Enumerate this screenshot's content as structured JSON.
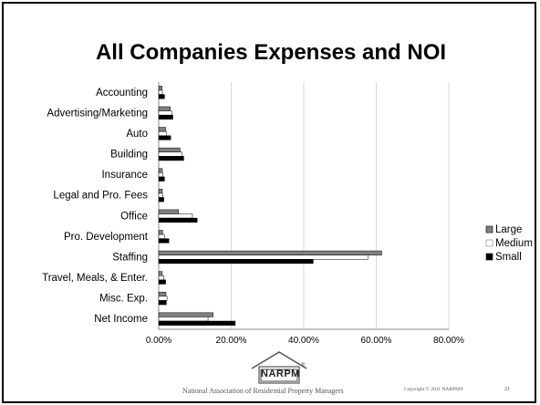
{
  "slide": {
    "footer_org": "National Association of Residential Property Managers",
    "copyright": "Copyright © 2011 NARPM®",
    "page_number": "21",
    "logo_text": "NARPM",
    "logo_mark": "®"
  },
  "chart_data": {
    "type": "bar",
    "orientation": "horizontal",
    "title": "All Companies Expenses and NOI",
    "categories": [
      "Accounting",
      "Advertising/Marketing",
      "Auto",
      "Building",
      "Insurance",
      "Legal and Pro. Fees",
      "Office",
      "Pro. Development",
      "Staffing",
      "Travel, Meals, & Enter.",
      "Misc. Exp.",
      "Net Income"
    ],
    "series": [
      {
        "name": "Large",
        "color": "#808080",
        "values": [
          0.9,
          3.2,
          1.9,
          5.9,
          1.0,
          1.0,
          5.5,
          1.1,
          61.5,
          1.0,
          2.0,
          15.0
        ]
      },
      {
        "name": "Medium",
        "color": "#ffffff",
        "values": [
          1.0,
          3.6,
          2.1,
          6.4,
          1.1,
          1.1,
          9.3,
          1.6,
          57.7,
          1.4,
          2.3,
          13.6
        ]
      },
      {
        "name": "Small",
        "color": "#000000",
        "values": [
          1.6,
          3.9,
          3.3,
          6.9,
          1.6,
          1.4,
          10.6,
          2.8,
          42.6,
          1.9,
          2.1,
          21.1
        ]
      }
    ],
    "xlim": [
      0,
      80
    ],
    "xticks": [
      "0.00%",
      "20.00%",
      "40.00%",
      "60.00%",
      "80.00%"
    ],
    "grid": true,
    "legend_position": "right"
  }
}
